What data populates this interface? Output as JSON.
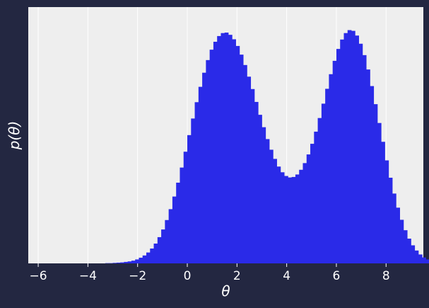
{
  "chart_data": {
    "type": "bar",
    "subtype": "histogram",
    "title": "",
    "xlabel": "θ",
    "ylabel": "p(θ)",
    "xlim": [
      -6.4,
      9.5
    ],
    "ylim": [
      0,
      1.035
    ],
    "x_ticks": [
      -6,
      -4,
      -2,
      0,
      2,
      4,
      6,
      8
    ],
    "x_tick_labels": [
      "−6",
      "−4",
      "−2",
      "0",
      "2",
      "4",
      "6",
      "8"
    ],
    "y_ticks_visible": false,
    "grid": "vertical",
    "legend": "none",
    "bin_width": 0.15,
    "bin_start": -6.0,
    "bin_heights_relative": [
      0,
      0,
      0,
      0,
      0,
      0,
      0,
      0,
      0,
      0,
      0,
      0,
      0,
      0,
      0,
      0,
      0,
      0,
      0.001,
      0.001,
      0.002,
      0.003,
      0.004,
      0.006,
      0.008,
      0.011,
      0.016,
      0.023,
      0.032,
      0.044,
      0.06,
      0.08,
      0.106,
      0.137,
      0.175,
      0.219,
      0.27,
      0.326,
      0.387,
      0.451,
      0.518,
      0.585,
      0.651,
      0.713,
      0.77,
      0.821,
      0.863,
      0.895,
      0.918,
      0.93,
      0.932,
      0.923,
      0.905,
      0.878,
      0.843,
      0.801,
      0.754,
      0.704,
      0.652,
      0.6,
      0.55,
      0.502,
      0.459,
      0.422,
      0.391,
      0.368,
      0.353,
      0.347,
      0.349,
      0.359,
      0.378,
      0.405,
      0.44,
      0.483,
      0.532,
      0.587,
      0.645,
      0.705,
      0.764,
      0.818,
      0.866,
      0.904,
      0.93,
      0.942,
      0.939,
      0.92,
      0.887,
      0.841,
      0.783,
      0.716,
      0.643,
      0.567,
      0.491,
      0.416,
      0.346,
      0.282,
      0.225,
      0.176,
      0.134,
      0.1,
      0.073,
      0.052,
      0.036,
      0.024,
      0.016,
      0.01,
      0.006,
      0.004,
      0.002,
      0.001,
      0.001,
      0,
      0,
      0,
      0,
      0
    ],
    "colors": {
      "bars": "#2a2ae8",
      "plot_background": "#eeeeee",
      "figure_background": "#232741",
      "gridline": "#ffffff",
      "text": "#ffffff"
    }
  }
}
